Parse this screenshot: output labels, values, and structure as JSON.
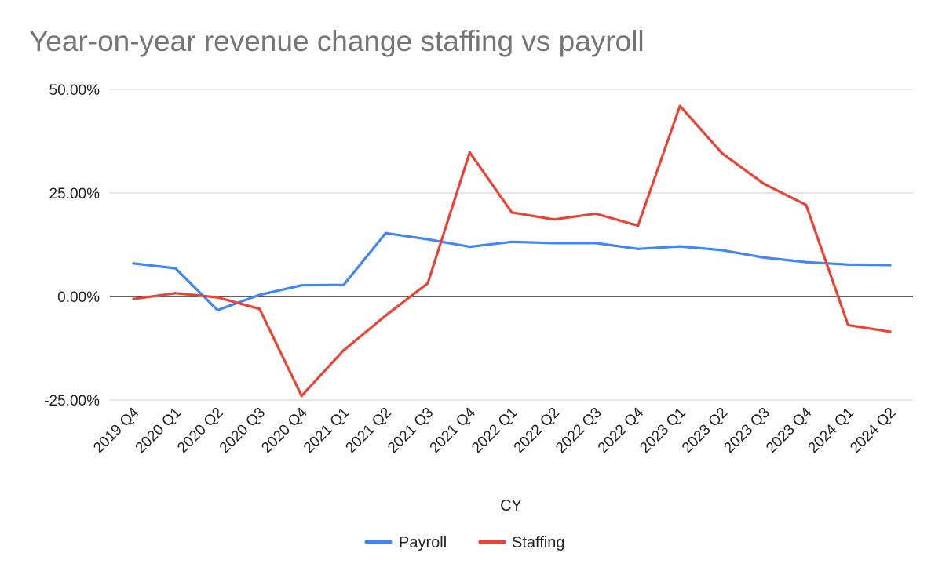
{
  "chart_data": {
    "type": "line",
    "title": "Year-on-year revenue change staffing vs payroll",
    "xlabel": "CY",
    "ylabel": "",
    "categories": [
      "2019 Q4",
      "2020 Q1",
      "2020 Q2",
      "2020 Q3",
      "2020 Q4",
      "2021 Q1",
      "2021 Q2",
      "2021 Q3",
      "2021 Q4",
      "2022 Q1",
      "2022 Q2",
      "2022 Q3",
      "2022 Q4",
      "2023 Q1",
      "2023 Q2",
      "2023 Q3",
      "2023 Q4",
      "2024 Q1",
      "2024 Q2"
    ],
    "ylim": [
      -25,
      50
    ],
    "yticks": [
      {
        "value": 50,
        "label": "50.00%"
      },
      {
        "value": 25,
        "label": "25.00%"
      },
      {
        "value": 0,
        "label": "0.00%"
      },
      {
        "value": -25,
        "label": "-25.00%"
      }
    ],
    "grid": true,
    "legend_position": "bottom",
    "series": [
      {
        "name": "Payroll",
        "color": "#4285f4",
        "values": [
          8.0,
          6.8,
          -3.3,
          0.4,
          2.7,
          2.8,
          15.3,
          13.8,
          12.0,
          13.2,
          12.9,
          12.9,
          11.5,
          12.1,
          11.2,
          9.4,
          8.3,
          7.7,
          7.6
        ]
      },
      {
        "name": "Staffing",
        "color": "#ea4335",
        "values": [
          -0.6,
          0.8,
          -0.2,
          -3.0,
          -24.0,
          -13.0,
          -4.6,
          3.2,
          34.8,
          20.3,
          18.6,
          20.0,
          17.1,
          46.0,
          34.6,
          27.2,
          22.1,
          -6.9,
          -8.5
        ]
      }
    ],
    "zero_line_color": "#000000",
    "grid_color": "#cccccc"
  }
}
